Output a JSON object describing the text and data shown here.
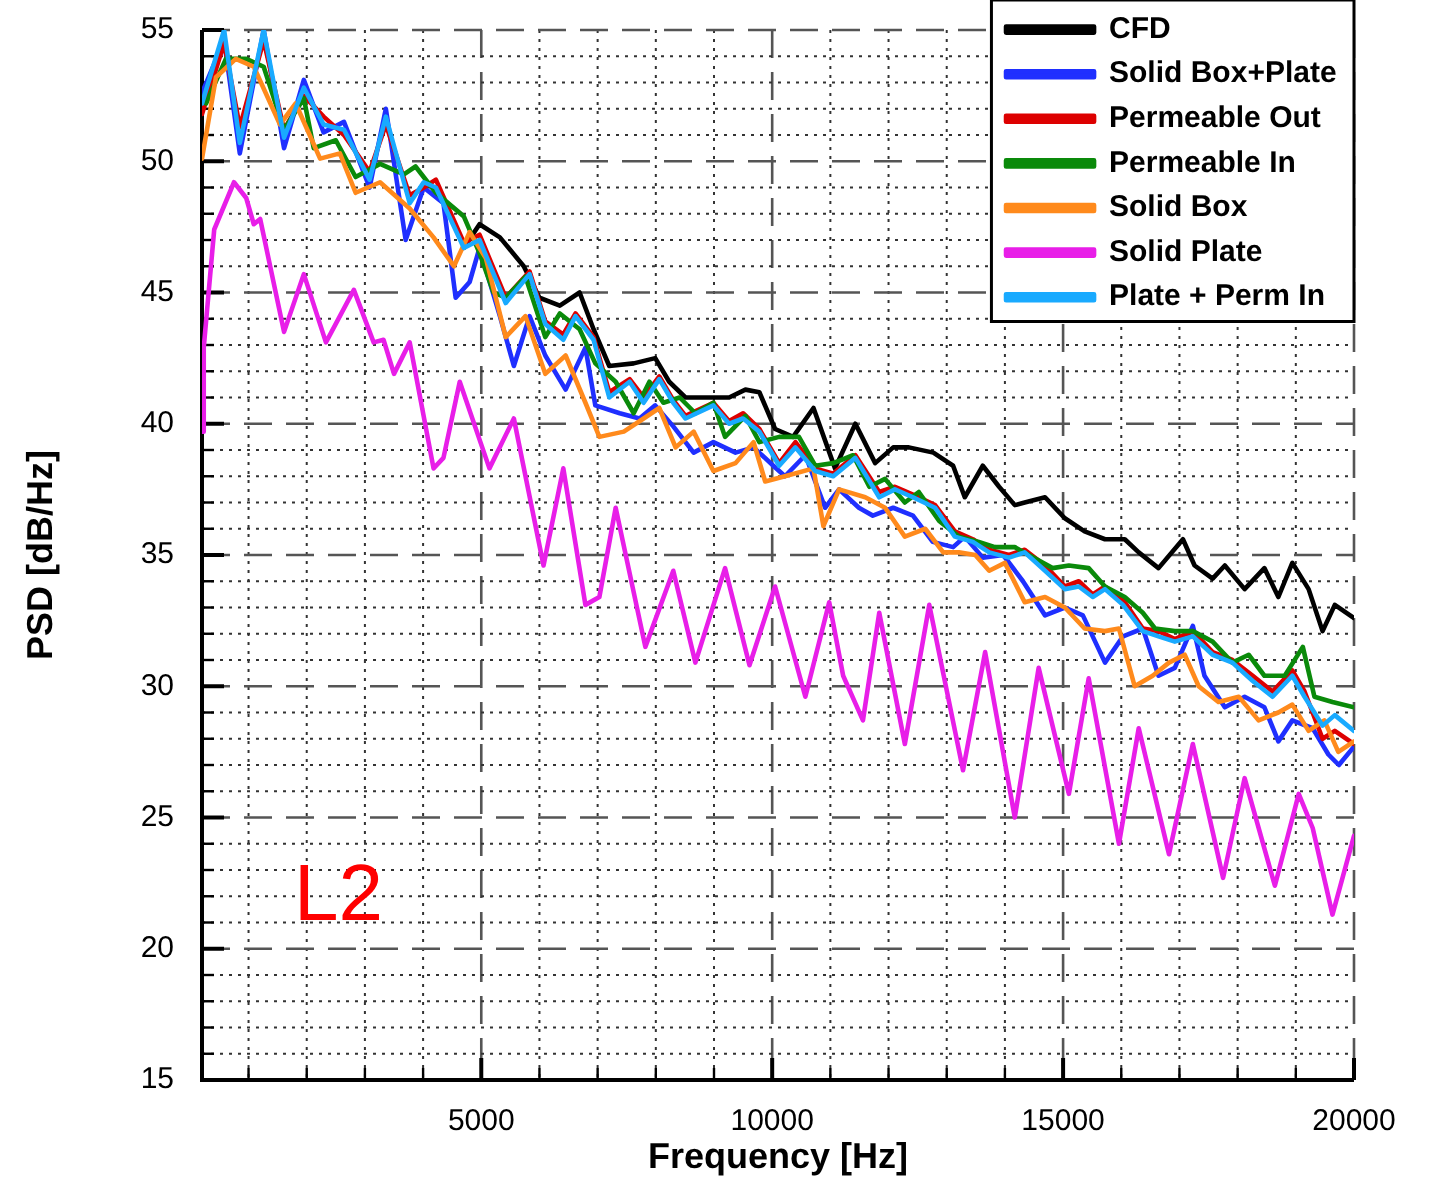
{
  "chart_data": {
    "type": "line",
    "xlabel": "Frequency [Hz]",
    "ylabel": "PSD [dB/Hz]",
    "xlim": [
      200,
      20000
    ],
    "ylim": [
      15,
      55
    ],
    "xticks": [
      {
        "value": 1000,
        "label": null
      },
      {
        "value": 2000,
        "label": null
      },
      {
        "value": 3000,
        "label": null
      },
      {
        "value": 4000,
        "label": null
      },
      5000,
      {
        "value": 6000,
        "label": null
      },
      {
        "value": 7000,
        "label": null
      },
      {
        "value": 8000,
        "label": null
      },
      {
        "value": 9000,
        "label": null
      },
      10000,
      {
        "value": 11000,
        "label": null
      },
      {
        "value": 12000,
        "label": null
      },
      {
        "value": 13000,
        "label": null
      },
      {
        "value": 14000,
        "label": null
      },
      15000,
      {
        "value": 16000,
        "label": null
      },
      {
        "value": 17000,
        "label": null
      },
      {
        "value": 18000,
        "label": null
      },
      {
        "value": 19000,
        "label": null
      },
      20000
    ],
    "yticks": [
      15,
      {
        "value": 16,
        "label": null
      },
      {
        "value": 17,
        "label": null
      },
      {
        "value": 18,
        "label": null
      },
      {
        "value": 19,
        "label": null
      },
      20,
      {
        "value": 21,
        "label": null
      },
      {
        "value": 22,
        "label": null
      },
      {
        "value": 23,
        "label": null
      },
      {
        "value": 24,
        "label": null
      },
      25,
      {
        "value": 26,
        "label": null
      },
      {
        "value": 27,
        "label": null
      },
      {
        "value": 28,
        "label": null
      },
      {
        "value": 29,
        "label": null
      },
      30,
      {
        "value": 31,
        "label": null
      },
      {
        "value": 32,
        "label": null
      },
      {
        "value": 33,
        "label": null
      },
      {
        "value": 34,
        "label": null
      },
      35,
      {
        "value": 36,
        "label": null
      },
      {
        "value": 37,
        "label": null
      },
      {
        "value": 38,
        "label": null
      },
      {
        "value": 39,
        "label": null
      },
      40,
      {
        "value": 41,
        "label": null
      },
      {
        "value": 42,
        "label": null
      },
      {
        "value": 43,
        "label": null
      },
      {
        "value": 44,
        "label": null
      },
      45,
      {
        "value": 46,
        "label": null
      },
      {
        "value": 47,
        "label": null
      },
      {
        "value": 48,
        "label": null
      },
      {
        "value": 49,
        "label": null
      },
      50,
      {
        "value": 51,
        "label": null
      },
      {
        "value": 52,
        "label": null
      },
      {
        "value": 53,
        "label": null
      },
      {
        "value": 54,
        "label": null
      },
      55
    ],
    "grid": true,
    "legend": "top right",
    "annotations": [
      "L2"
    ],
    "series": [
      {
        "name": "CFD",
        "color": "#000000",
        "x": [
          4700,
          4970,
          5320,
          5730,
          6000,
          6350,
          6690,
          6930,
          7200,
          7620,
          7990,
          8230,
          8510,
          8990,
          9260,
          9540,
          9780,
          10050,
          10360,
          10710,
          11080,
          11430,
          11770,
          12080,
          12350,
          12770,
          13110,
          13310,
          13620,
          13900,
          14170,
          14340,
          14690,
          15030,
          15370,
          15720,
          16060,
          16300,
          16640,
          17060,
          17260,
          17570,
          17780,
          18120,
          18460,
          18700,
          18940,
          19220,
          19460,
          19670,
          20000
        ],
        "values": [
          46.7,
          47.6,
          47.1,
          46.0,
          44.8,
          44.5,
          45.0,
          43.6,
          42.2,
          42.3,
          42.5,
          41.6,
          41.0,
          41.0,
          41.0,
          41.3,
          41.2,
          39.8,
          39.5,
          40.6,
          38.3,
          40.0,
          38.5,
          39.1,
          39.1,
          38.9,
          38.4,
          37.2,
          38.4,
          37.6,
          36.9,
          37.0,
          37.2,
          36.4,
          35.9,
          35.6,
          35.6,
          35.1,
          34.5,
          35.6,
          34.6,
          34.1,
          34.6,
          33.7,
          34.5,
          33.4,
          34.7,
          33.7,
          32.1,
          33.1,
          32.6
        ]
      },
      {
        "name": "Solid Box+Plate",
        "color": "#1f2fff",
        "x": [
          200,
          580,
          850,
          1260,
          1610,
          1950,
          2290,
          2640,
          3080,
          3360,
          3700,
          4010,
          4350,
          4560,
          4800,
          4970,
          5320,
          5560,
          5830,
          6100,
          6450,
          6790,
          6960,
          7380,
          7720,
          7990,
          8300,
          8650,
          8990,
          9370,
          9680,
          10020,
          10220,
          10570,
          10910,
          11150,
          11490,
          11730,
          12080,
          12420,
          12760,
          13110,
          13310,
          13620,
          13970,
          14310,
          14690,
          15030,
          15340,
          15720,
          16030,
          16370,
          16640,
          16920,
          17230,
          17430,
          17780,
          18120,
          18460,
          18700,
          18940,
          19290,
          19560,
          19740,
          20000
        ],
        "values": [
          52.6,
          54.6,
          50.3,
          55,
          50.5,
          53.1,
          51.1,
          51.5,
          49.0,
          52.0,
          47.0,
          49.0,
          48.4,
          44.8,
          45.4,
          46.7,
          44.1,
          42.2,
          44.1,
          42.6,
          41.3,
          42.9,
          40.7,
          40.4,
          40.2,
          40.7,
          39.9,
          38.9,
          39.3,
          38.9,
          39.1,
          38.4,
          38.0,
          38.8,
          36.8,
          37.5,
          36.8,
          36.5,
          36.8,
          36.5,
          35.5,
          35.3,
          35.7,
          34.9,
          35.0,
          34.0,
          32.7,
          33.0,
          32.7,
          30.9,
          31.9,
          32.2,
          30.4,
          30.7,
          32.3,
          30.4,
          29.2,
          29.6,
          29.2,
          27.9,
          28.7,
          28.4,
          27.4,
          27.0,
          27.7
        ]
      },
      {
        "name": "Permeable Out",
        "color": "#dd0000",
        "x": [
          200,
          580,
          850,
          1260,
          1610,
          1950,
          2290,
          2640,
          3080,
          3360,
          3770,
          4010,
          4220,
          4700,
          4970,
          5420,
          5830,
          6100,
          6410,
          6620,
          6930,
          7200,
          7550,
          7790,
          8060,
          8300,
          8510,
          8990,
          9260,
          9500,
          9780,
          10120,
          10400,
          10740,
          11050,
          11430,
          11840,
          12110,
          12420,
          12800,
          13140,
          13450,
          13730,
          14070,
          14340,
          14690,
          15030,
          15270,
          15510,
          15720,
          16030,
          16370,
          16640,
          16920,
          17230,
          17570,
          17910,
          18260,
          18600,
          18940,
          19150,
          19460,
          19670,
          20000
        ],
        "values": [
          51.8,
          54.5,
          51.3,
          54.6,
          51.2,
          52.5,
          51.7,
          51.0,
          49.6,
          51.4,
          48.7,
          49.0,
          49.3,
          46.9,
          47.2,
          44.8,
          45.8,
          43.9,
          43.4,
          44.2,
          43.3,
          41.2,
          41.7,
          41.0,
          41.8,
          40.9,
          40.3,
          40.8,
          40.1,
          40.4,
          39.8,
          38.5,
          39.3,
          38.3,
          38.1,
          38.8,
          37.4,
          37.6,
          37.3,
          36.9,
          35.9,
          35.6,
          35.2,
          35.0,
          35.2,
          34.6,
          33.8,
          34.0,
          33.5,
          33.8,
          33.3,
          32.2,
          32.1,
          31.8,
          32.1,
          31.3,
          31.0,
          30.4,
          29.8,
          30.6,
          29.8,
          28.0,
          28.3,
          27.8
        ]
      },
      {
        "name": "Permeable In",
        "color": "#0a8a0a",
        "x": [
          270,
          610,
          960,
          1260,
          1610,
          1950,
          2120,
          2500,
          2840,
          3260,
          3670,
          3870,
          4220,
          4700,
          4970,
          5210,
          5420,
          5760,
          6100,
          6350,
          6690,
          6960,
          7310,
          7620,
          7890,
          8130,
          8410,
          8680,
          8990,
          9190,
          9540,
          9780,
          10120,
          10460,
          10740,
          11050,
          11390,
          11670,
          11940,
          12280,
          12520,
          12870,
          13210,
          13550,
          13830,
          14170,
          14410,
          14820,
          15100,
          15440,
          15720,
          16060,
          16370,
          16580,
          16920,
          17230,
          17570,
          17910,
          18190,
          18460,
          18810,
          19120,
          19320,
          19630,
          20000
        ],
        "values": [
          52.2,
          53.9,
          53.9,
          53.6,
          51.2,
          52.4,
          50.5,
          50.8,
          49.4,
          49.9,
          49.5,
          49.8,
          48.8,
          47.9,
          46.5,
          45.0,
          44.8,
          45.6,
          43.3,
          44.2,
          43.6,
          42.3,
          41.6,
          40.4,
          41.6,
          40.8,
          41.0,
          40.4,
          40.8,
          39.5,
          40.3,
          39.3,
          39.5,
          39.5,
          38.4,
          38.5,
          38.8,
          37.6,
          37.9,
          37.0,
          37.4,
          36.3,
          35.7,
          35.5,
          35.3,
          35.3,
          35.0,
          34.5,
          34.6,
          34.5,
          33.8,
          33.4,
          32.8,
          32.2,
          32.1,
          32.1,
          31.7,
          30.9,
          31.2,
          30.4,
          30.4,
          31.5,
          29.6,
          29.4,
          29.2
        ]
      },
      {
        "name": "Solid Box",
        "color": "#ff8a1c",
        "x": [
          200,
          440,
          780,
          1090,
          1540,
          1810,
          2230,
          2570,
          2840,
          3260,
          3770,
          4180,
          4530,
          4800,
          5080,
          5420,
          5760,
          6100,
          6450,
          6790,
          7030,
          7450,
          7790,
          8060,
          8340,
          8650,
          8990,
          9370,
          9680,
          9880,
          10220,
          10710,
          10880,
          11150,
          11600,
          11940,
          12280,
          12630,
          12940,
          13210,
          13490,
          13730,
          14000,
          14340,
          14690,
          15030,
          15370,
          15720,
          15960,
          16230,
          16540,
          16820,
          17090,
          17330,
          17670,
          18020,
          18360,
          18700,
          18940,
          19220,
          19490,
          19730,
          20000
        ],
        "values": [
          50.1,
          53.2,
          53.9,
          53.6,
          51.4,
          52.2,
          50.1,
          50.3,
          48.8,
          49.2,
          48.2,
          47.1,
          46.0,
          47.3,
          46.3,
          43.3,
          44.1,
          41.9,
          42.6,
          40.8,
          39.5,
          39.7,
          40.2,
          40.6,
          39.1,
          39.7,
          38.2,
          38.5,
          39.3,
          37.8,
          38.0,
          38.3,
          36.1,
          37.5,
          37.2,
          36.8,
          35.7,
          36.0,
          35.1,
          35.1,
          35.0,
          34.4,
          34.7,
          33.2,
          33.4,
          33.0,
          32.2,
          32.1,
          32.2,
          30.0,
          30.4,
          30.9,
          31.2,
          30.0,
          29.4,
          29.6,
          28.7,
          29.0,
          29.3,
          28.3,
          28.7,
          27.5,
          27.9
        ]
      },
      {
        "name": "Solid Plate",
        "color": "#e81ee8",
        "x": [
          200,
          230,
          410,
          750,
          960,
          1090,
          1200,
          1610,
          1950,
          2330,
          2810,
          3150,
          3320,
          3500,
          3770,
          4180,
          4350,
          4630,
          5140,
          5560,
          6070,
          6410,
          6790,
          7030,
          7310,
          7820,
          8300,
          8680,
          9190,
          9610,
          10050,
          10570,
          10980,
          11220,
          11560,
          11840,
          12280,
          12700,
          13280,
          13660,
          14170,
          14580,
          15100,
          15440,
          15960,
          16300,
          16820,
          17230,
          17750,
          18120,
          18640,
          19050,
          19290,
          19630,
          20000
        ],
        "values": [
          39.7,
          42.9,
          47.4,
          49.2,
          48.6,
          47.6,
          47.8,
          43.5,
          45.7,
          43.1,
          45.1,
          43.1,
          43.2,
          41.9,
          43.1,
          38.3,
          38.7,
          41.6,
          38.3,
          40.2,
          34.6,
          38.3,
          33.1,
          33.4,
          36.8,
          31.5,
          34.4,
          30.9,
          34.5,
          30.8,
          33.8,
          29.6,
          33.2,
          30.4,
          28.7,
          32.8,
          27.8,
          33.1,
          26.8,
          31.3,
          25.0,
          30.7,
          25.9,
          30.3,
          24.0,
          28.4,
          23.6,
          27.8,
          22.7,
          26.5,
          22.4,
          25.9,
          24.6,
          21.3,
          24.3
        ]
      },
      {
        "name": "Plate + Perm In",
        "color": "#19aaff",
        "x": [
          200,
          580,
          850,
          1260,
          1610,
          1950,
          2290,
          2640,
          3080,
          3360,
          3770,
          4010,
          4220,
          4700,
          4970,
          5420,
          5830,
          6100,
          6410,
          6620,
          6930,
          7200,
          7550,
          7790,
          8060,
          8300,
          8510,
          8990,
          9260,
          9500,
          9780,
          10120,
          10400,
          10740,
          11050,
          11430,
          11840,
          12110,
          12420,
          12800,
          13140,
          13450,
          13730,
          14070,
          14340,
          14690,
          15030,
          15270,
          15510,
          15720,
          16030,
          16370,
          16640,
          16920,
          17230,
          17570,
          17910,
          18260,
          18600,
          18940,
          19150,
          19460,
          19670,
          20000
        ],
        "values": [
          52.2,
          55,
          50.7,
          55,
          50.9,
          52.8,
          51.4,
          51.2,
          49.3,
          51.7,
          48.4,
          49.2,
          49.0,
          46.7,
          47.0,
          44.6,
          45.7,
          43.8,
          43.2,
          44.1,
          43.2,
          41.0,
          41.6,
          40.8,
          41.7,
          40.8,
          40.2,
          40.7,
          40.0,
          40.2,
          39.7,
          38.4,
          39.1,
          38.2,
          38.0,
          38.7,
          37.2,
          37.5,
          37.2,
          36.8,
          35.7,
          35.5,
          35.1,
          34.9,
          35.1,
          34.4,
          33.7,
          33.8,
          33.4,
          33.7,
          33.1,
          32.1,
          31.9,
          31.7,
          31.9,
          31.2,
          30.9,
          30.2,
          29.6,
          30.4,
          29.6,
          28.5,
          28.9,
          28.3
        ]
      }
    ]
  }
}
